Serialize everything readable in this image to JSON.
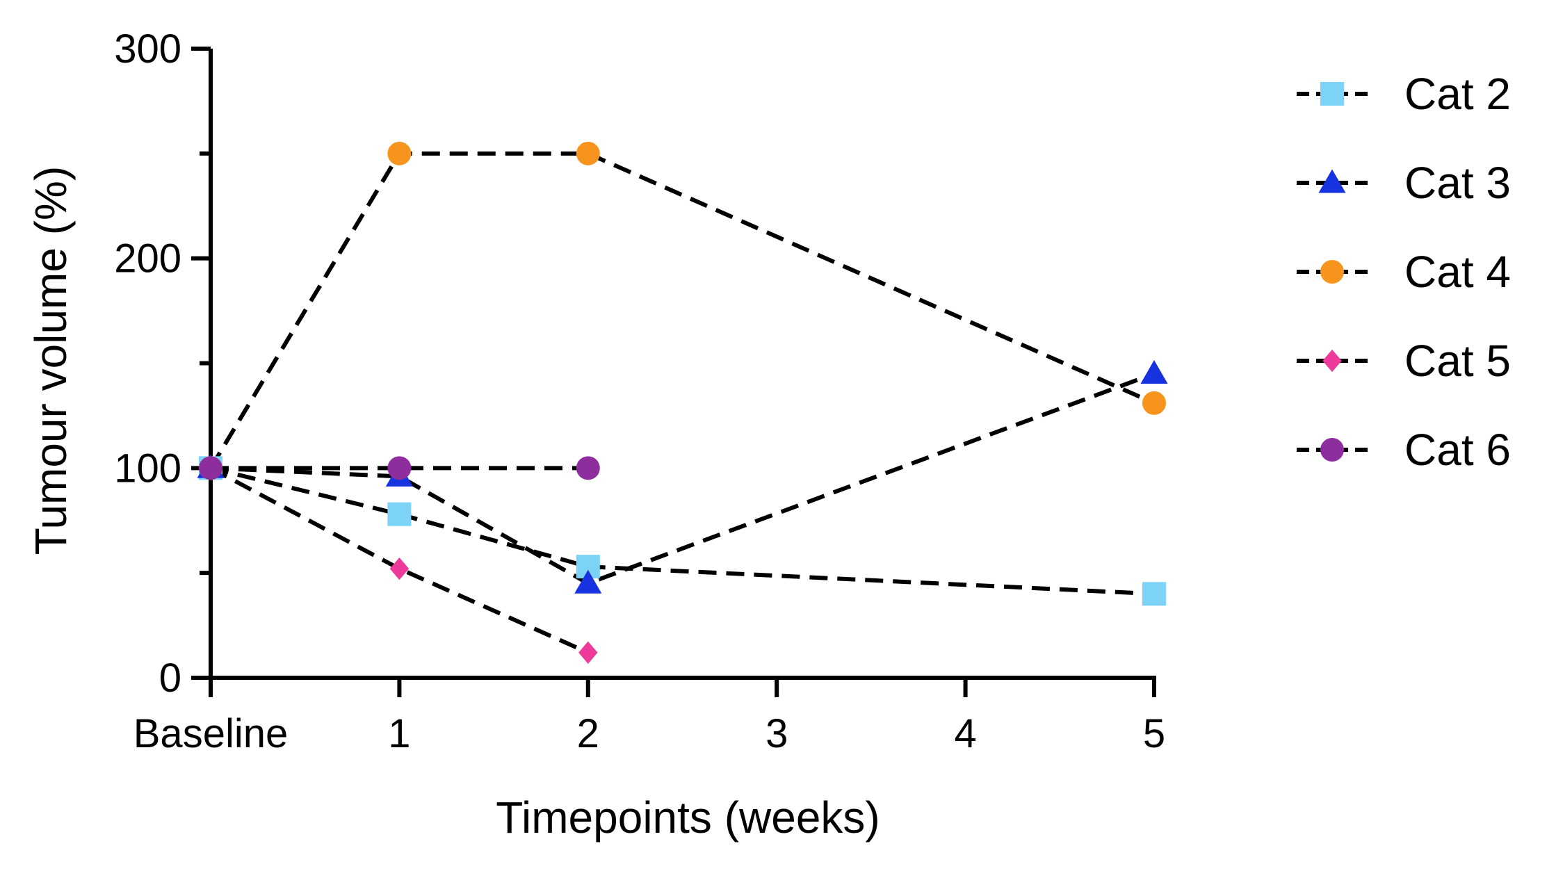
{
  "chart_data": {
    "type": "line",
    "title": "",
    "xlabel": "Timepoints (weeks)",
    "ylabel": "Tumour volume (%)",
    "x_ticks": [
      {
        "value": 0,
        "label": "Baseline"
      },
      {
        "value": 1,
        "label": "1"
      },
      {
        "value": 2,
        "label": "2"
      },
      {
        "value": 3,
        "label": "3"
      },
      {
        "value": 4,
        "label": "4"
      },
      {
        "value": 5,
        "label": "5"
      }
    ],
    "y_ticks": [
      {
        "value": 0,
        "label": "0"
      },
      {
        "value": 100,
        "label": "100"
      },
      {
        "value": 200,
        "label": "200"
      },
      {
        "value": 300,
        "label": "300"
      }
    ],
    "y_minor_ticks": [
      50,
      150,
      250
    ],
    "xlim": [
      0,
      5
    ],
    "ylim": [
      0,
      300
    ],
    "line_style": "dashed",
    "line_color": "#000000",
    "legend_position": "right",
    "series": [
      {
        "name": "Cat 2",
        "marker": "square",
        "color": "#7DD3F5",
        "x": [
          0,
          1,
          2,
          5
        ],
        "y": [
          100,
          78,
          53,
          40
        ]
      },
      {
        "name": "Cat 3",
        "marker": "triangle",
        "color": "#1733E0",
        "x": [
          0,
          1,
          2,
          5
        ],
        "y": [
          100,
          96,
          45,
          145
        ]
      },
      {
        "name": "Cat 4",
        "marker": "circle",
        "color": "#F7941D",
        "x": [
          0,
          1,
          2,
          5
        ],
        "y": [
          100,
          250,
          250,
          131
        ]
      },
      {
        "name": "Cat 5",
        "marker": "diamond",
        "color": "#EE3A9A",
        "x": [
          0,
          1,
          2
        ],
        "y": [
          100,
          52,
          12
        ]
      },
      {
        "name": "Cat 6",
        "marker": "circle",
        "color": "#8E2D9E",
        "x": [
          0,
          1,
          2
        ],
        "y": [
          100,
          100,
          100
        ]
      }
    ]
  }
}
